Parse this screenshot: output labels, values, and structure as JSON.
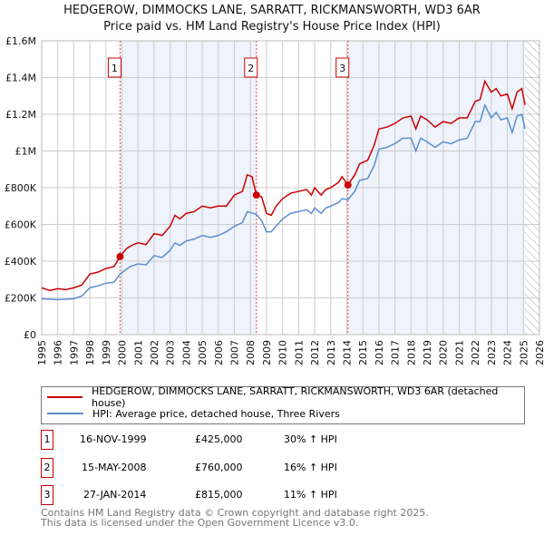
{
  "title": "HEDGEROW, DIMMOCKS LANE, SARRATT, RICKMANSWORTH, WD3 6AR",
  "subtitle": "Price paid vs. HM Land Registry's House Price Index (HPI)",
  "chart_data": {
    "type": "line",
    "ylim": [
      0,
      1600000
    ],
    "xlim": [
      1995,
      2026
    ],
    "yticks": [
      {
        "v": 0,
        "l": "£0"
      },
      {
        "v": 200000,
        "l": "£200K"
      },
      {
        "v": 400000,
        "l": "£400K"
      },
      {
        "v": 600000,
        "l": "£600K"
      },
      {
        "v": 800000,
        "l": "£800K"
      },
      {
        "v": 1000000,
        "l": "£1M"
      },
      {
        "v": 1200000,
        "l": "£1.2M"
      },
      {
        "v": 1400000,
        "l": "£1.4M"
      },
      {
        "v": 1600000,
        "l": "£1.6M"
      }
    ],
    "xticks": [
      "1995",
      "1996",
      "1997",
      "1998",
      "1999",
      "2000",
      "2001",
      "2002",
      "2003",
      "2004",
      "2005",
      "2006",
      "2007",
      "2008",
      "2009",
      "2010",
      "2011",
      "2012",
      "2013",
      "2014",
      "2015",
      "2016",
      "2017",
      "2018",
      "2019",
      "2020",
      "2021",
      "2022",
      "2023",
      "2024",
      "2025",
      "2026"
    ],
    "forecast_from": 2025.1,
    "series": [
      {
        "name": "HEDGEROW, DIMMOCKS LANE, SARRATT, RICKMANSWORTH, WD3 6AR (detached house)",
        "color": "#cc0000",
        "x": [
          1995,
          1995.5,
          1996,
          1996.5,
          1997,
          1997.5,
          1998,
          1998.5,
          1999,
          1999.5,
          1999.88,
          2000.3,
          2000.7,
          2001,
          2001.5,
          2002,
          2002.5,
          2003,
          2003.3,
          2003.6,
          2004,
          2004.5,
          2005,
          2005.5,
          2006,
          2006.5,
          2007,
          2007.5,
          2007.8,
          2008.1,
          2008.37,
          2008.7,
          2009,
          2009.3,
          2009.6,
          2010,
          2010.5,
          2011,
          2011.5,
          2011.8,
          2012,
          2012.4,
          2012.7,
          2013,
          2013.5,
          2013.7,
          2014.07,
          2014.5,
          2014.8,
          2015.3,
          2015.7,
          2016,
          2016.5,
          2017,
          2017.5,
          2018,
          2018.3,
          2018.6,
          2019,
          2019.5,
          2020,
          2020.5,
          2021,
          2021.5,
          2022,
          2022.3,
          2022.6,
          2023,
          2023.3,
          2023.6,
          2024,
          2024.3,
          2024.6,
          2024.9,
          2025.1
        ],
        "y": [
          255000,
          240000,
          250000,
          245000,
          255000,
          270000,
          330000,
          340000,
          360000,
          370000,
          425000,
          470000,
          490000,
          500000,
          490000,
          550000,
          540000,
          590000,
          650000,
          630000,
          660000,
          670000,
          700000,
          690000,
          700000,
          700000,
          760000,
          780000,
          870000,
          860000,
          760000,
          750000,
          660000,
          650000,
          700000,
          740000,
          770000,
          780000,
          790000,
          760000,
          800000,
          760000,
          790000,
          800000,
          830000,
          860000,
          815000,
          870000,
          930000,
          950000,
          1030000,
          1120000,
          1130000,
          1150000,
          1180000,
          1190000,
          1120000,
          1190000,
          1170000,
          1130000,
          1160000,
          1150000,
          1180000,
          1180000,
          1270000,
          1280000,
          1380000,
          1320000,
          1340000,
          1300000,
          1310000,
          1230000,
          1320000,
          1340000,
          1250000
        ]
      },
      {
        "name": "HPI: Average price, detached house, Three Rivers",
        "color": "#5b8ed0",
        "x": [
          1995,
          1996,
          1997,
          1997.5,
          1998,
          1998.5,
          1999,
          1999.5,
          1999.88,
          2000.5,
          2001,
          2001.5,
          2002,
          2002.5,
          2003,
          2003.3,
          2003.6,
          2004,
          2004.5,
          2005,
          2005.5,
          2006,
          2006.5,
          2007,
          2007.5,
          2007.8,
          2008.37,
          2008.7,
          2009,
          2009.3,
          2009.6,
          2010,
          2010.5,
          2011,
          2011.5,
          2011.8,
          2012,
          2012.4,
          2012.7,
          2013,
          2013.5,
          2013.7,
          2014.07,
          2014.5,
          2014.8,
          2015.3,
          2015.7,
          2016,
          2016.5,
          2017,
          2017.5,
          2018,
          2018.3,
          2018.6,
          2019,
          2019.5,
          2020,
          2020.5,
          2021,
          2021.5,
          2022,
          2022.3,
          2022.6,
          2023,
          2023.3,
          2023.6,
          2024,
          2024.3,
          2024.6,
          2024.9,
          2025.1
        ],
        "y": [
          195000,
          190000,
          195000,
          210000,
          255000,
          265000,
          280000,
          285000,
          330000,
          370000,
          385000,
          380000,
          430000,
          420000,
          460000,
          500000,
          485000,
          510000,
          520000,
          540000,
          530000,
          540000,
          560000,
          590000,
          610000,
          670000,
          655000,
          620000,
          560000,
          560000,
          590000,
          630000,
          660000,
          670000,
          680000,
          660000,
          690000,
          660000,
          690000,
          700000,
          720000,
          740000,
          735000,
          780000,
          840000,
          850000,
          920000,
          1010000,
          1020000,
          1040000,
          1070000,
          1070000,
          1000000,
          1070000,
          1050000,
          1020000,
          1050000,
          1040000,
          1060000,
          1070000,
          1160000,
          1160000,
          1250000,
          1180000,
          1210000,
          1170000,
          1180000,
          1100000,
          1190000,
          1200000,
          1120000
        ]
      }
    ],
    "sales": [
      {
        "n": "1",
        "x": 1999.88,
        "date": "16-NOV-1999",
        "price": "£425,000",
        "price_v": 425000,
        "hpi": "30% ↑ HPI"
      },
      {
        "n": "2",
        "x": 2008.37,
        "date": "15-MAY-2008",
        "price": "£760,000",
        "price_v": 760000,
        "hpi": "16% ↑ HPI"
      },
      {
        "n": "3",
        "x": 2014.07,
        "date": "27-JAN-2014",
        "price": "£815,000",
        "price_v": 815000,
        "hpi": "11% ↑ HPI"
      }
    ]
  },
  "footer": {
    "line1": "Contains HM Land Registry data © Crown copyright and database right 2025.",
    "line2": "This data is licensed under the Open Government Licence v3.0."
  }
}
